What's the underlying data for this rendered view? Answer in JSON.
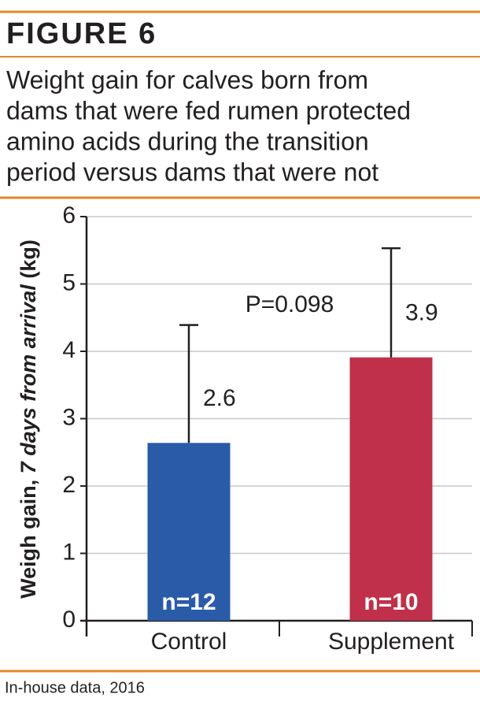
{
  "chart_data": {
    "type": "bar",
    "heading": "FIGURE 6",
    "title": [
      "Weight gain for calves born from",
      "dams that were fed rumen protected",
      "amino acids during the transition",
      "period versus dams that were not"
    ],
    "ylabel": [
      "Weigh gain, ",
      "7 days from arrival",
      " (kg)"
    ],
    "categories": [
      "Control",
      "Supplement"
    ],
    "values": [
      2.64,
      3.91
    ],
    "value_labels": [
      "2.6",
      "3.9"
    ],
    "errors": [
      1.75,
      1.62
    ],
    "bar_labels": [
      "n=12",
      "n=10"
    ],
    "colors": [
      "#2a5ba8",
      "#c0304a"
    ],
    "annotation": "P=0.098",
    "ylim": [
      0,
      6
    ],
    "yticks": [
      0,
      1,
      2,
      3,
      4,
      5,
      6
    ],
    "grid": true,
    "source": "In-house data, 2016"
  }
}
